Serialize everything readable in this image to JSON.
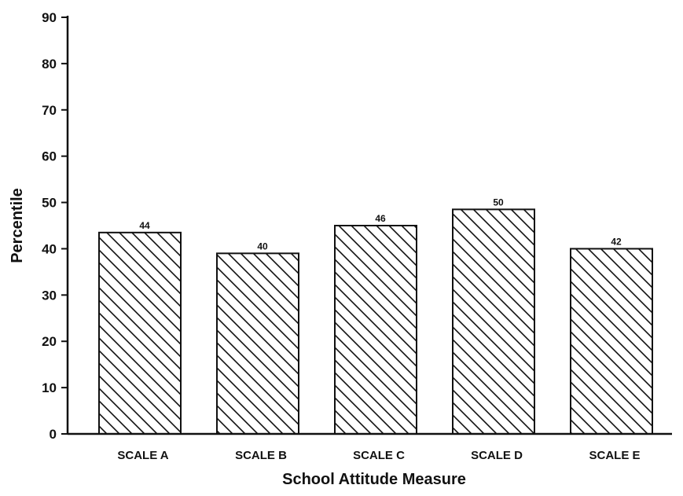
{
  "chart_data": {
    "type": "bar",
    "categories": [
      "SCALE A",
      "SCALE B",
      "SCALE C",
      "SCALE D",
      "SCALE E"
    ],
    "values": [
      44,
      40,
      46,
      50,
      42
    ],
    "bar_heights": [
      43.5,
      39,
      45,
      48.5,
      40
    ],
    "data_labels": [
      "44",
      "40",
      "46",
      "50",
      "42"
    ],
    "xlabel": "School Attitude Measure",
    "ylabel": "Percentile",
    "ylim": [
      0,
      90
    ],
    "yticks": [
      "0",
      "10",
      "20",
      "30",
      "40",
      "50",
      "60",
      "70",
      "80",
      "90"
    ],
    "bar_fill": "diagonal-hatch",
    "grid": false,
    "colors": {
      "bar_stroke": "#111111",
      "hatch": "#111111",
      "axis": "#111111",
      "background": "#ffffff"
    }
  }
}
